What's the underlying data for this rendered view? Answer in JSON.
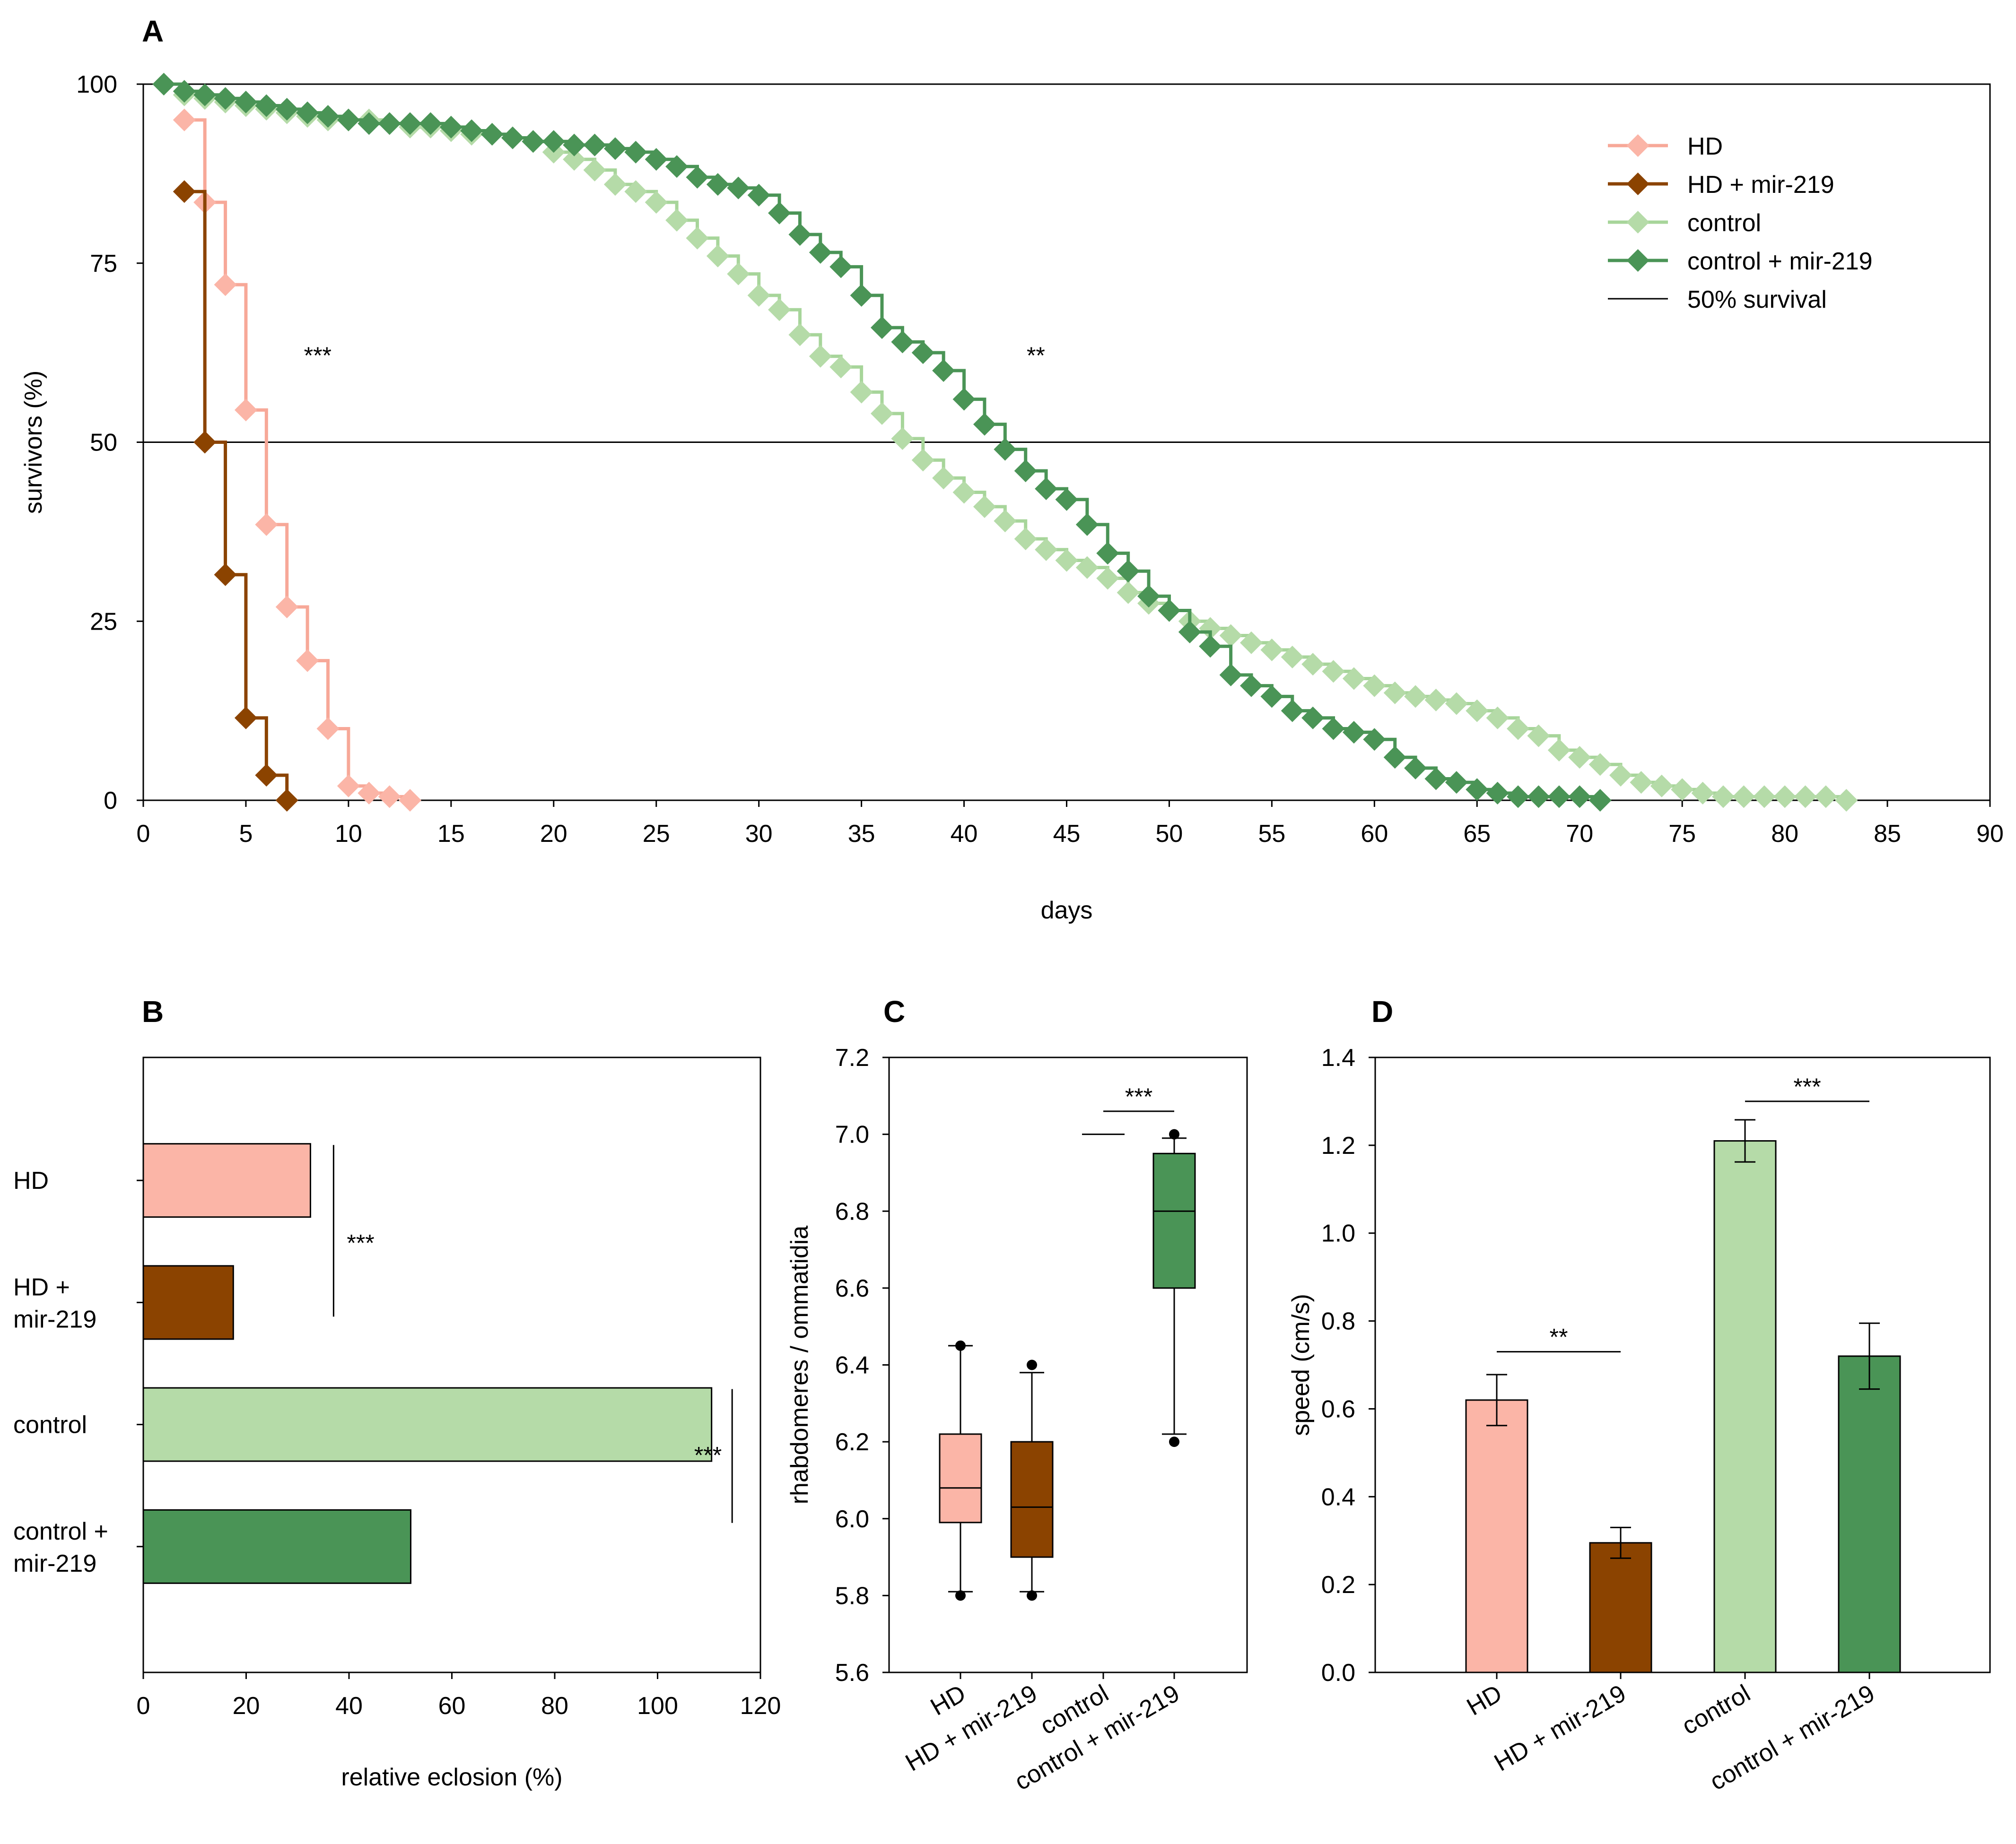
{
  "colors": {
    "hd": "#fbb5a7",
    "hd_mir219": "#8b4300",
    "control": "#b5dba8",
    "control_mir219": "#4a9456",
    "hd_line": "#f7a898",
    "control_line": "#a7d59a",
    "axis": "#000000"
  },
  "chart_data": [
    {
      "panel": "A",
      "type": "line",
      "title": "",
      "xlabel": "days",
      "ylabel": "survivors (%)",
      "xlim": [
        0,
        90
      ],
      "ylim": [
        0,
        100
      ],
      "xticks": [
        0,
        5,
        10,
        15,
        20,
        25,
        30,
        35,
        40,
        45,
        50,
        55,
        60,
        65,
        70,
        75,
        80,
        85,
        90
      ],
      "yticks": [
        0,
        25,
        50,
        75,
        100
      ],
      "legend_position": "top-right",
      "reference_line": {
        "y": 50,
        "label": "50% survival"
      },
      "series": [
        {
          "name": "HD",
          "color_key": "hd",
          "x": [
            2,
            3,
            4,
            5,
            6,
            7,
            8,
            9,
            10,
            11,
            12,
            13
          ],
          "y": [
            95,
            83.5,
            72,
            54.5,
            38.5,
            27,
            19.5,
            10,
            2,
            1,
            0.5,
            0
          ]
        },
        {
          "name": "HD + mir-219",
          "color_key": "hd_mir219",
          "x": [
            2,
            3,
            4,
            5,
            6,
            7
          ],
          "y": [
            85,
            50,
            31.5,
            11.5,
            3.5,
            0
          ]
        },
        {
          "name": "control",
          "color_key": "control",
          "x": [
            1,
            2,
            3,
            4,
            5,
            6,
            7,
            8,
            9,
            10,
            11,
            12,
            13,
            14,
            15,
            16,
            17,
            18,
            19,
            20,
            21,
            22,
            23,
            24,
            25,
            26,
            27,
            28,
            29,
            30,
            31,
            32,
            33,
            34,
            35,
            36,
            37,
            38,
            39,
            40,
            41,
            42,
            43,
            44,
            45,
            46,
            47,
            48,
            49,
            50,
            51,
            52,
            53,
            54,
            55,
            56,
            57,
            58,
            59,
            60,
            61,
            62,
            63,
            64,
            65,
            66,
            67,
            68,
            69,
            70,
            71,
            72,
            73,
            74,
            75,
            76,
            77,
            78,
            79,
            80,
            81,
            82,
            83
          ],
          "y": [
            100,
            98.5,
            98,
            97.5,
            97,
            96.5,
            96,
            95.5,
            95,
            95,
            95,
            94.5,
            94,
            94,
            93.5,
            93,
            93,
            92.5,
            92,
            90.5,
            89.5,
            88,
            86,
            85,
            83.5,
            81,
            78.5,
            76,
            73.5,
            70.5,
            68.5,
            65,
            62,
            60.5,
            57,
            54,
            50.5,
            47.5,
            45,
            43,
            41,
            39,
            36.5,
            35,
            33.5,
            32.5,
            31,
            29,
            27.5,
            26.5,
            25,
            24,
            23,
            22,
            21,
            20,
            19,
            18,
            17,
            16,
            15,
            14.5,
            14,
            13.5,
            12.5,
            11.5,
            10,
            9,
            7,
            6,
            5,
            3.5,
            2.5,
            2,
            1.5,
            1,
            0.5,
            0.5,
            0.5,
            0.5,
            0.5,
            0.5,
            0
          ]
        },
        {
          "name": "control + mir-219",
          "color_key": "control_mir219",
          "x": [
            1,
            2,
            3,
            4,
            5,
            6,
            7,
            8,
            9,
            10,
            11,
            12,
            13,
            14,
            15,
            16,
            17,
            18,
            19,
            20,
            21,
            22,
            23,
            24,
            25,
            26,
            27,
            28,
            29,
            30,
            31,
            32,
            33,
            34,
            35,
            36,
            37,
            38,
            39,
            40,
            41,
            42,
            43,
            44,
            45,
            46,
            47,
            48,
            49,
            50,
            51,
            52,
            53,
            54,
            55,
            56,
            57,
            58,
            59,
            60,
            61,
            62,
            63,
            64,
            65,
            66,
            67,
            68,
            69,
            70,
            71
          ],
          "y": [
            100,
            99,
            98.5,
            98,
            97.5,
            97,
            96.5,
            96,
            95.5,
            95,
            94.5,
            94.5,
            94.5,
            94.5,
            94,
            93.5,
            93,
            92.5,
            92,
            92,
            91.5,
            91.5,
            91,
            90.5,
            89.5,
            88.5,
            87,
            86,
            85.5,
            84.5,
            82,
            79,
            76.5,
            74.5,
            70.5,
            66,
            64,
            62.5,
            60,
            56,
            52.5,
            49,
            46,
            43.5,
            42,
            38.5,
            34.5,
            32,
            28.5,
            26.5,
            23.5,
            21.5,
            17.5,
            16,
            14.5,
            12.5,
            11.5,
            10,
            9.5,
            8.5,
            6,
            4.5,
            3,
            2.5,
            1.5,
            1,
            0.5,
            0.5,
            0.5,
            0.5,
            0
          ]
        }
      ],
      "annotations": [
        {
          "text": "***",
          "x": 8.5,
          "y": 61
        },
        {
          "text": "**",
          "x": 43.5,
          "y": 61
        }
      ]
    },
    {
      "panel": "B",
      "type": "bar",
      "orientation": "horizontal",
      "xlabel": "relative eclosion (%)",
      "ylabel": "",
      "xlim": [
        0,
        120
      ],
      "xticks": [
        0,
        20,
        40,
        60,
        80,
        100,
        120
      ],
      "categories": [
        {
          "lines": [
            "HD"
          ],
          "color_key": "hd"
        },
        {
          "lines": [
            "HD +",
            "mir-219"
          ],
          "color_key": "hd_mir219"
        },
        {
          "lines": [
            "control"
          ],
          "color_key": "control"
        },
        {
          "lines": [
            "control +",
            "mir-219"
          ],
          "color_key": "control_mir219"
        }
      ],
      "values": [
        32.5,
        17.5,
        110.5,
        52
      ],
      "annotations": [
        {
          "text": "***",
          "between": [
            0,
            1
          ],
          "x": 37
        },
        {
          "text": "***",
          "between": [
            2,
            3
          ],
          "x": 114.5
        }
      ]
    },
    {
      "panel": "C",
      "type": "box",
      "xlabel": "",
      "ylabel": "rhabdomeres / ommatidia",
      "ylim": [
        5.6,
        7.2
      ],
      "yticks": [
        "5.6",
        "5.8",
        "6.0",
        "6.2",
        "6.4",
        "6.6",
        "6.8",
        "7.0",
        "7.2"
      ],
      "categories": [
        "HD",
        "HD + mir-219",
        "control",
        "control + mir-219"
      ],
      "boxes": [
        {
          "color_key": "hd",
          "whisker_low": 5.81,
          "q1": 5.99,
          "median": 6.08,
          "q3": 6.22,
          "whisker_high": 6.45,
          "outliers": [
            5.8,
            6.45
          ]
        },
        {
          "color_key": "hd_mir219",
          "whisker_low": 5.81,
          "q1": 5.9,
          "median": 6.03,
          "q3": 6.2,
          "whisker_high": 6.38,
          "outliers": [
            5.8,
            6.4
          ]
        },
        {
          "color_key": "control",
          "flat_value": 7.0
        },
        {
          "color_key": "control_mir219",
          "whisker_low": 6.22,
          "q1": 6.6,
          "median": 6.8,
          "q3": 6.95,
          "whisker_high": 6.99,
          "outliers": [
            6.2,
            7.0
          ]
        }
      ],
      "annotations": [
        {
          "text": "***",
          "between": [
            2,
            3
          ],
          "y": 7.06
        }
      ]
    },
    {
      "panel": "D",
      "type": "bar",
      "xlabel": "",
      "ylabel": "speed (cm/s)",
      "ylim": [
        0,
        1.4
      ],
      "yticks": [
        "0.0",
        "0.2",
        "0.4",
        "0.6",
        "0.8",
        "1.0",
        "1.2",
        "1.4"
      ],
      "categories": [
        "HD",
        "HD + mir-219",
        "control",
        "control + mir-219"
      ],
      "color_keys": [
        "hd",
        "hd_mir219",
        "control",
        "control_mir219"
      ],
      "values": [
        0.62,
        0.295,
        1.21,
        0.72
      ],
      "errors": [
        0.058,
        0.035,
        0.048,
        0.075
      ],
      "annotations": [
        {
          "text": "**",
          "between": [
            0,
            1
          ],
          "y": 0.73
        },
        {
          "text": "***",
          "between": [
            2,
            3
          ],
          "y": 1.3
        }
      ]
    }
  ]
}
